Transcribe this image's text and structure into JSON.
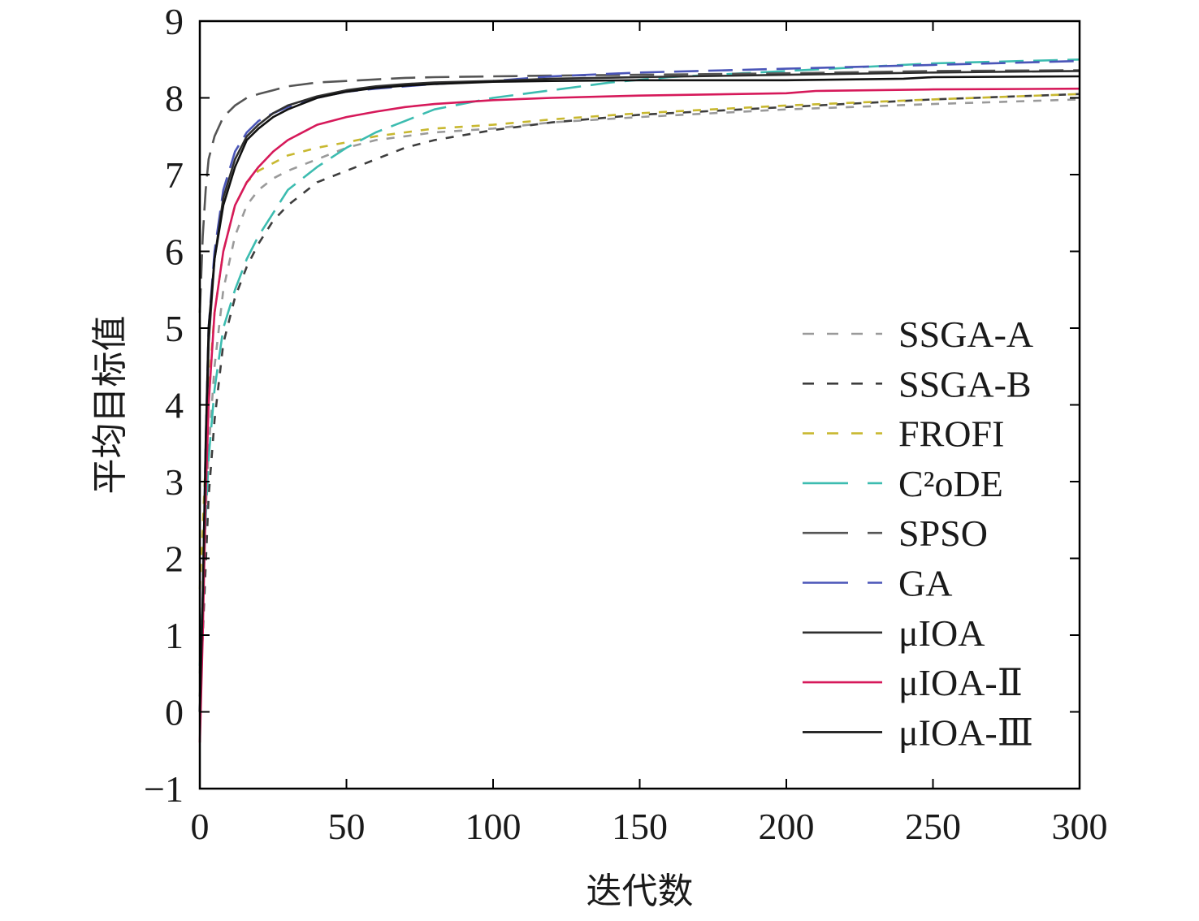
{
  "chart_data": {
    "type": "line",
    "xlabel": "迭代数",
    "ylabel": "平均目标值",
    "xlim": [
      0,
      300
    ],
    "ylim": [
      -1,
      9
    ],
    "xticks": [
      0,
      50,
      100,
      150,
      200,
      250,
      300
    ],
    "yticks": [
      -1,
      0,
      1,
      2,
      3,
      4,
      5,
      6,
      7,
      8,
      9
    ],
    "grid": false,
    "legend_position": "right",
    "series": [
      {
        "name": "SSGA-A",
        "color": "#9a9a9a",
        "dash": "short",
        "x": [
          0,
          1,
          2,
          3,
          5,
          8,
          12,
          16,
          20,
          25,
          30,
          40,
          50,
          60,
          70,
          80,
          100,
          120,
          150,
          200,
          250,
          300
        ],
        "y": [
          0.5,
          1.5,
          2.6,
          3.4,
          4.5,
          5.5,
          6.2,
          6.6,
          6.8,
          6.95,
          7.05,
          7.2,
          7.35,
          7.45,
          7.5,
          7.55,
          7.6,
          7.68,
          7.75,
          7.85,
          7.92,
          7.98
        ]
      },
      {
        "name": "SSGA-B",
        "color": "#3d3d3d",
        "dash": "short",
        "x": [
          0,
          1,
          2,
          3,
          5,
          8,
          12,
          16,
          20,
          25,
          30,
          40,
          50,
          60,
          70,
          80,
          100,
          120,
          150,
          200,
          250,
          300
        ],
        "y": [
          0.2,
          1.0,
          1.9,
          2.8,
          3.8,
          4.8,
          5.4,
          5.8,
          6.1,
          6.4,
          6.6,
          6.9,
          7.05,
          7.2,
          7.35,
          7.45,
          7.58,
          7.68,
          7.78,
          7.88,
          7.98,
          8.05
        ]
      },
      {
        "name": "FROFI",
        "color": "#c8b830",
        "dash": "short",
        "x": [
          0,
          1,
          2,
          3,
          5,
          8,
          12,
          16,
          20,
          25,
          30,
          40,
          50,
          60,
          70,
          80,
          100,
          120,
          150,
          200,
          250,
          300
        ],
        "y": [
          1.6,
          2.4,
          3.3,
          4.2,
          5.2,
          6.0,
          6.6,
          6.9,
          7.05,
          7.15,
          7.25,
          7.35,
          7.42,
          7.5,
          7.55,
          7.6,
          7.65,
          7.72,
          7.8,
          7.9,
          7.98,
          8.05
        ]
      },
      {
        "name": "C²oDE",
        "color": "#3cbcb0",
        "dash": "long",
        "x": [
          0,
          1,
          2,
          3,
          5,
          8,
          12,
          16,
          20,
          25,
          30,
          40,
          50,
          60,
          70,
          80,
          100,
          120,
          140,
          160,
          200,
          250,
          300
        ],
        "y": [
          0.6,
          1.4,
          2.5,
          3.3,
          4.2,
          5.0,
          5.5,
          5.9,
          6.2,
          6.5,
          6.8,
          7.1,
          7.35,
          7.55,
          7.7,
          7.85,
          8.0,
          8.1,
          8.2,
          8.27,
          8.35,
          8.45,
          8.5
        ]
      },
      {
        "name": "SPSO",
        "color": "#555555",
        "dash": "long",
        "x": [
          0,
          1,
          2,
          3,
          5,
          8,
          12,
          16,
          20,
          25,
          30,
          40,
          50,
          60,
          70,
          80,
          100,
          120,
          150,
          200,
          250,
          300
        ],
        "y": [
          5.2,
          6.2,
          6.8,
          7.2,
          7.5,
          7.75,
          7.9,
          8.0,
          8.05,
          8.1,
          8.15,
          8.2,
          8.22,
          8.24,
          8.26,
          8.27,
          8.28,
          8.29,
          8.3,
          8.32,
          8.35,
          8.36
        ]
      },
      {
        "name": "GA",
        "color": "#4a55b8",
        "dash": "long",
        "x": [
          0,
          1,
          2,
          3,
          5,
          8,
          12,
          16,
          20,
          25,
          30,
          40,
          50,
          60,
          70,
          80,
          100,
          120,
          150,
          200,
          250,
          300
        ],
        "y": [
          0.0,
          1.5,
          3.5,
          5.0,
          6.0,
          6.8,
          7.3,
          7.55,
          7.7,
          7.8,
          7.88,
          8.0,
          8.08,
          8.12,
          8.15,
          8.18,
          8.22,
          8.28,
          8.33,
          8.38,
          8.43,
          8.48
        ]
      },
      {
        "name": "μIOA",
        "color": "#2f2f2f",
        "dash": "solid",
        "x": [
          0,
          1,
          2,
          3,
          5,
          8,
          12,
          16,
          20,
          25,
          30,
          40,
          50,
          60,
          70,
          80,
          100,
          120,
          150,
          200,
          250,
          300
        ],
        "y": [
          0.0,
          1.2,
          3.0,
          4.8,
          5.9,
          6.7,
          7.2,
          7.5,
          7.65,
          7.8,
          7.9,
          8.02,
          8.1,
          8.15,
          8.18,
          8.2,
          8.22,
          8.25,
          8.27,
          8.3,
          8.33,
          8.35
        ]
      },
      {
        "name": "μIOA-Ⅱ",
        "color": "#d6195a",
        "dash": "solid",
        "x": [
          0,
          1,
          2,
          3,
          5,
          8,
          12,
          16,
          20,
          25,
          30,
          40,
          50,
          60,
          70,
          80,
          100,
          120,
          150,
          200,
          210,
          250,
          300
        ],
        "y": [
          -0.4,
          1.0,
          2.8,
          4.0,
          5.2,
          6.0,
          6.6,
          6.9,
          7.1,
          7.3,
          7.45,
          7.65,
          7.75,
          7.82,
          7.88,
          7.92,
          7.97,
          8.0,
          8.03,
          8.06,
          8.09,
          8.11,
          8.12
        ]
      },
      {
        "name": "μIOA-Ⅲ",
        "color": "#111111",
        "dash": "solid",
        "x": [
          0,
          1,
          2,
          3,
          5,
          8,
          12,
          16,
          20,
          25,
          30,
          40,
          50,
          60,
          70,
          80,
          100,
          120,
          150,
          200,
          240,
          250,
          300
        ],
        "y": [
          0.0,
          1.5,
          3.5,
          5.0,
          5.9,
          6.6,
          7.1,
          7.45,
          7.6,
          7.75,
          7.85,
          8.0,
          8.08,
          8.13,
          8.16,
          8.18,
          8.21,
          8.22,
          8.23,
          8.23,
          8.25,
          8.27,
          8.28
        ]
      }
    ]
  }
}
